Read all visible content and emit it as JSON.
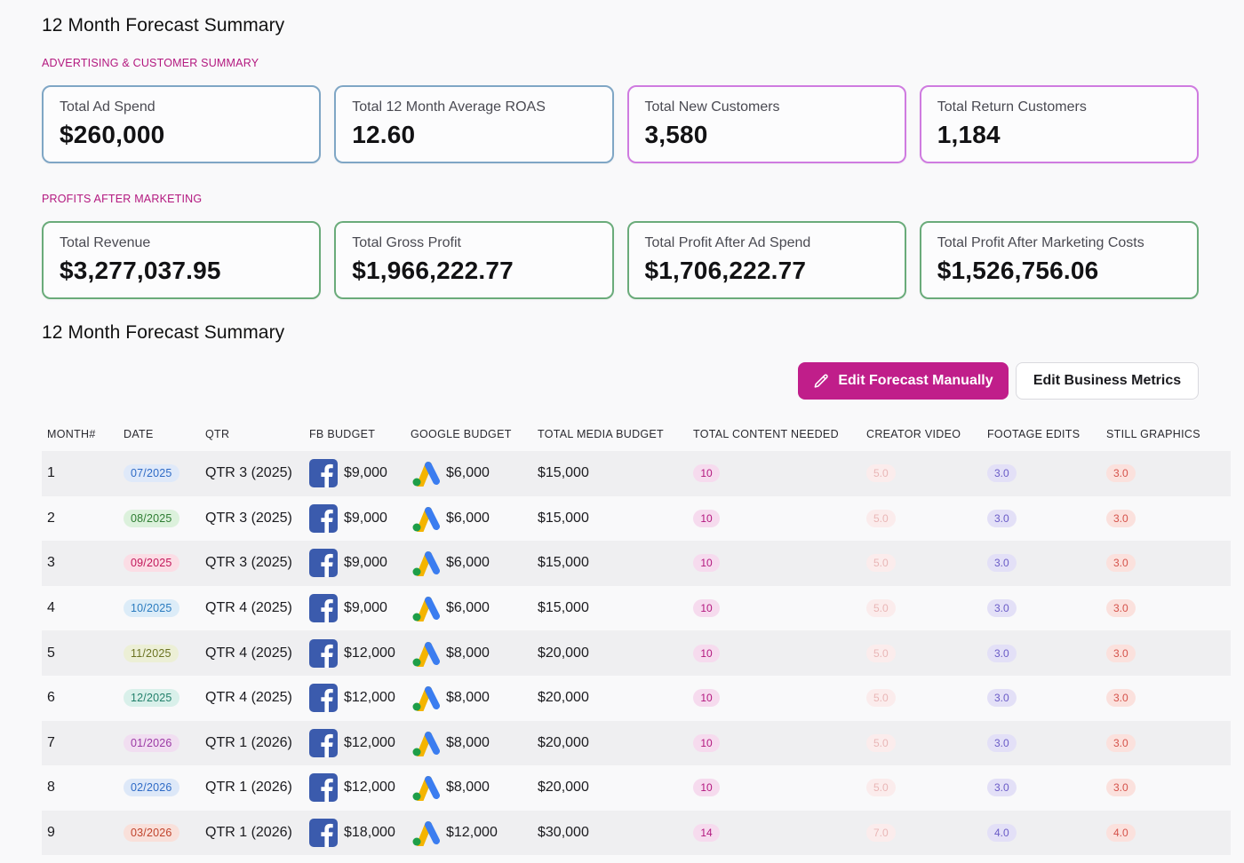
{
  "summary": {
    "title": "12 Month Forecast Summary",
    "ad_section_label": "ADVERTISING & CUSTOMER SUMMARY",
    "ad_cards": [
      {
        "label": "Total Ad Spend",
        "value": "$260,000"
      },
      {
        "label": "Total 12 Month Average ROAS",
        "value": "12.60"
      },
      {
        "label": "Total New Customers",
        "value": "3,580"
      },
      {
        "label": "Total Return Customers",
        "value": "1,184"
      }
    ],
    "profit_section_label": "PROFITS AFTER MARKETING",
    "profit_cards": [
      {
        "label": "Total Revenue",
        "value": "$3,277,037.95"
      },
      {
        "label": "Total Gross Profit",
        "value": "$1,966,222.77"
      },
      {
        "label": "Total Profit After Ad Spend",
        "value": "$1,706,222.77"
      },
      {
        "label": "Total Profit After Marketing Costs",
        "value": "$1,526,756.06"
      }
    ]
  },
  "forecast": {
    "title": "12 Month Forecast Summary",
    "edit_manual_label": "Edit Forecast Manually",
    "edit_metrics_label": "Edit Business Metrics",
    "columns": [
      "MONTH#",
      "DATE",
      "QTR",
      "FB BUDGET",
      "GOOGLE BUDGET",
      "TOTAL MEDIA BUDGET",
      "TOTAL CONTENT NEEDED",
      "CREATOR VIDEO",
      "FOOTAGE EDITS",
      "STILL GRAPHICS"
    ],
    "rows": [
      {
        "month": "1",
        "date": "07/2025",
        "date_bg": "#dfe9f9",
        "date_fg": "#2f6bc6",
        "qtr": "QTR 3 (2025)",
        "fb": "$9,000",
        "google": "$6,000",
        "media": "$15,000",
        "content": "10",
        "creator": "5.0",
        "footage": "3.0",
        "still": "3.0"
      },
      {
        "month": "2",
        "date": "08/2025",
        "date_bg": "#dcf1dc",
        "date_fg": "#2e7d32",
        "qtr": "QTR 3 (2025)",
        "fb": "$9,000",
        "google": "$6,000",
        "media": "$15,000",
        "content": "10",
        "creator": "5.0",
        "footage": "3.0",
        "still": "3.0"
      },
      {
        "month": "3",
        "date": "09/2025",
        "date_bg": "#fbdde5",
        "date_fg": "#c2185b",
        "qtr": "QTR 3 (2025)",
        "fb": "$9,000",
        "google": "$6,000",
        "media": "$15,000",
        "content": "10",
        "creator": "5.0",
        "footage": "3.0",
        "still": "3.0"
      },
      {
        "month": "4",
        "date": "10/2025",
        "date_bg": "#dcecf8",
        "date_fg": "#2a7bbf",
        "qtr": "QTR 4 (2025)",
        "fb": "$9,000",
        "google": "$6,000",
        "media": "$15,000",
        "content": "10",
        "creator": "5.0",
        "footage": "3.0",
        "still": "3.0"
      },
      {
        "month": "5",
        "date": "11/2025",
        "date_bg": "#ecefd6",
        "date_fg": "#6b7322",
        "qtr": "QTR 4 (2025)",
        "fb": "$12,000",
        "google": "$8,000",
        "media": "$20,000",
        "content": "10",
        "creator": "5.0",
        "footage": "3.0",
        "still": "3.0"
      },
      {
        "month": "6",
        "date": "12/2025",
        "date_bg": "#d9f0ea",
        "date_fg": "#23806b",
        "qtr": "QTR 4 (2025)",
        "fb": "$12,000",
        "google": "$8,000",
        "media": "$20,000",
        "content": "10",
        "creator": "5.0",
        "footage": "3.0",
        "still": "3.0"
      },
      {
        "month": "7",
        "date": "01/2026",
        "date_bg": "#f1def1",
        "date_fg": "#9b3aa5",
        "qtr": "QTR 1 (2026)",
        "fb": "$12,000",
        "google": "$8,000",
        "media": "$20,000",
        "content": "10",
        "creator": "5.0",
        "footage": "3.0",
        "still": "3.0"
      },
      {
        "month": "8",
        "date": "02/2026",
        "date_bg": "#dde8f8",
        "date_fg": "#2f6bc6",
        "qtr": "QTR 1 (2026)",
        "fb": "$12,000",
        "google": "$8,000",
        "media": "$20,000",
        "content": "10",
        "creator": "5.0",
        "footage": "3.0",
        "still": "3.0"
      },
      {
        "month": "9",
        "date": "03/2026",
        "date_bg": "#f9e0da",
        "date_fg": "#c0432c",
        "qtr": "QTR 1 (2026)",
        "fb": "$18,000",
        "google": "$12,000",
        "media": "$30,000",
        "content": "14",
        "creator": "7.0",
        "footage": "4.0",
        "still": "4.0"
      }
    ]
  }
}
